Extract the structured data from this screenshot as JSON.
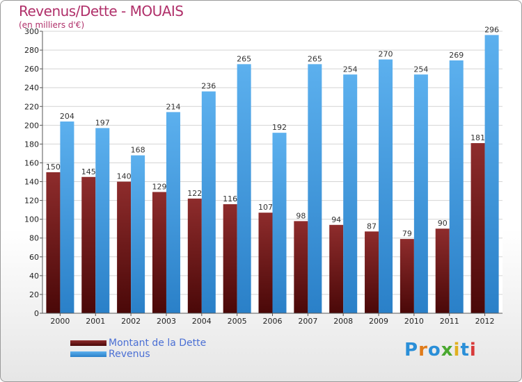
{
  "header": {
    "title": "Revenus/Dette - MOUAIS",
    "subtitle": "(en milliers d'€)"
  },
  "colors": {
    "dette": "#6e1a1a",
    "revenus": "#3d9ae0",
    "title": "#b0306a",
    "legend_text": "#4a6fd4"
  },
  "legend": {
    "items": [
      {
        "label": "Montant de la Dette",
        "color": "#6e1a1a"
      },
      {
        "label": "Revenus",
        "color": "#3d9ae0"
      }
    ]
  },
  "logo": {
    "text": "Proxiti"
  },
  "chart_data": {
    "type": "bar",
    "categories": [
      "2000",
      "2001",
      "2002",
      "2003",
      "2004",
      "2005",
      "2006",
      "2007",
      "2008",
      "2009",
      "2010",
      "2011",
      "2012"
    ],
    "series": [
      {
        "name": "Montant de la Dette",
        "values": [
          150,
          145,
          140,
          129,
          122,
          116,
          107,
          98,
          94,
          87,
          79,
          90,
          181
        ]
      },
      {
        "name": "Revenus",
        "values": [
          204,
          197,
          168,
          214,
          236,
          265,
          192,
          265,
          254,
          270,
          254,
          269,
          296
        ]
      }
    ],
    "title": "Revenus/Dette - MOUAIS",
    "subtitle": "(en milliers d'€)",
    "ylim": [
      0,
      300
    ],
    "yticks": [
      0,
      20,
      40,
      60,
      80,
      100,
      120,
      140,
      160,
      180,
      200,
      220,
      240,
      260,
      280,
      300
    ],
    "grid": true,
    "legend_position": "bottom-left"
  }
}
